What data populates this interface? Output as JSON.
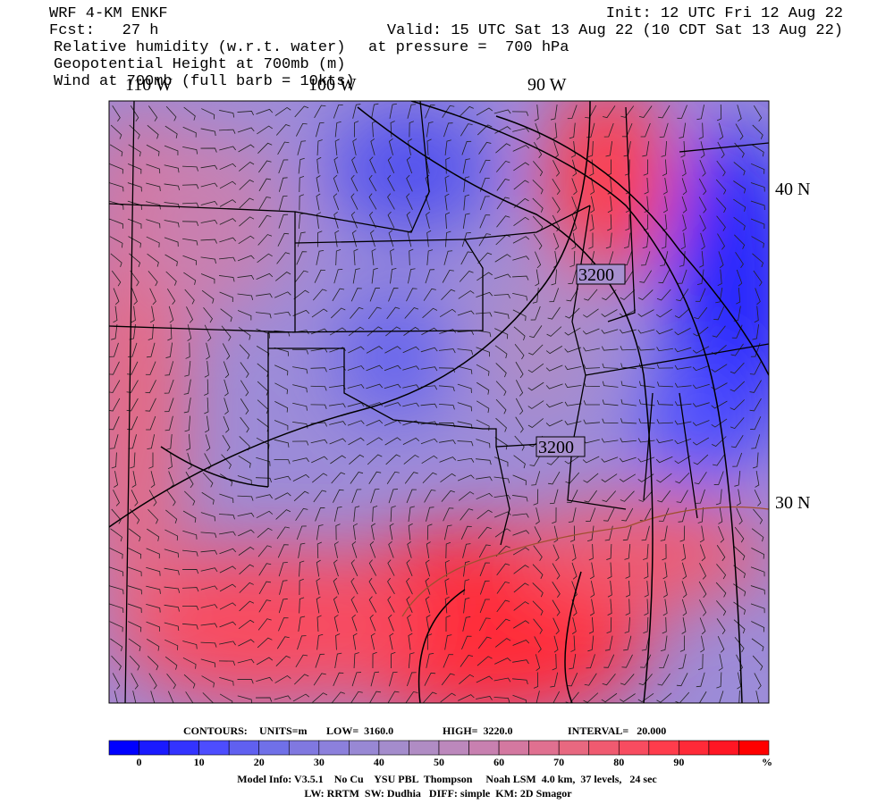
{
  "header": {
    "model": "WRF 4-KM ENKF",
    "forecast": "Fcst:   27 h",
    "init": "Init: 12 UTC Fri 12 Aug 22",
    "valid": "Valid: 15 UTC Sat 13 Aug 22 (10 CDT Sat 13 Aug 22)",
    "fields": [
      "Relative humidity (w.r.t. water)",
      "Geopotential Height at 700mb (m)",
      "Wind at 700mb (full barb = 10kts)"
    ],
    "pressure": "at pressure =  700 hPa"
  },
  "map": {
    "lon_labels": [
      "110 W",
      "100 W",
      "90 W"
    ],
    "lat_labels": [
      "40 N",
      "30 N"
    ],
    "contour_labels": [
      "3200",
      "3200"
    ]
  },
  "contours": {
    "title": "CONTOURS:",
    "units": "UNITS=m",
    "low": "LOW=  3160.0",
    "high": "HIGH=  3220.0",
    "interval": "INTERVAL=   20.000"
  },
  "colorbar": {
    "ticks": [
      0,
      10,
      20,
      30,
      40,
      50,
      60,
      70,
      80,
      90
    ],
    "unit": "%",
    "colors": [
      "#0000ff",
      "#1a1aff",
      "#3333ff",
      "#4d4dff",
      "#6060f0",
      "#7070e8",
      "#8078e0",
      "#8c80dc",
      "#9888d4",
      "#a48ccc",
      "#b08cc4",
      "#bc88bc",
      "#c880b0",
      "#d478a0",
      "#e07090",
      "#e86880",
      "#f05a70",
      "#f84c60",
      "#ff3c4c",
      "#ff2a38",
      "#ff1624",
      "#ff0000"
    ]
  },
  "footer": {
    "model_info": "Model Info: V3.5.1    No Cu    YSU PBL  Thompson     Noah LSM  4.0 km,  37 levels,   24 sec",
    "physics": "LW: RRTM  SW: Dudhia   DIFF: simple  KM: 2D Smagor"
  }
}
